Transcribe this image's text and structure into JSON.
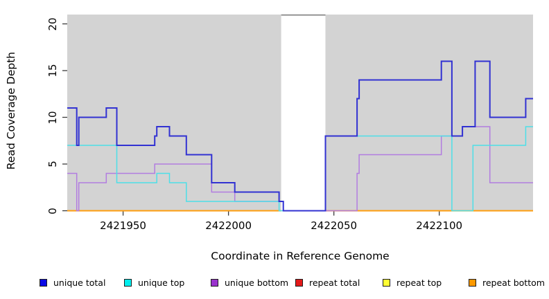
{
  "axes": {
    "y": {
      "label": "Read Coverage Depth"
    },
    "x": {
      "label": "Coordinate in Reference Genome"
    }
  },
  "chart_data": {
    "type": "line",
    "step": true,
    "title": "",
    "xlabel": "Coordinate in Reference Genome",
    "ylabel": "Read Coverage Depth",
    "xlim": [
      2421923.5,
      2422144.5
    ],
    "ylim": [
      0,
      21
    ],
    "x_ticks": [
      2421950,
      2422000,
      2422050,
      2422100
    ],
    "y_ticks": [
      0,
      5,
      10,
      15,
      20
    ],
    "grid": false,
    "legend_position": "bottom",
    "band_color": "#d3d3d3",
    "background_bands": [
      {
        "x0": 2421923.5,
        "x1": 2422025
      },
      {
        "x0": 2422046,
        "x1": 2422144.5
      }
    ],
    "white_gap": [
      2422025,
      2422046
    ],
    "series": [
      {
        "name": "repeat total",
        "color": "#d81e1e",
        "width": 1.4,
        "segments": [
          [
            [
              2421923.5,
              0
            ],
            [
              2422025,
              0
            ]
          ],
          [
            [
              2422046,
              0
            ],
            [
              2422144.5,
              0
            ]
          ]
        ]
      },
      {
        "name": "repeat top",
        "color": "#f0e63c",
        "width": 1.4,
        "segments": [
          [
            [
              2421923.5,
              0
            ],
            [
              2422025,
              0
            ]
          ],
          [
            [
              2422046,
              0
            ],
            [
              2422144.5,
              0
            ]
          ]
        ]
      },
      {
        "name": "repeat bottom",
        "color": "#ff9e0f",
        "width": 1.9,
        "segments": [
          [
            [
              2421923.5,
              0
            ],
            [
              2422025,
              0
            ]
          ],
          [
            [
              2422046,
              0
            ],
            [
              2422144.5,
              0
            ]
          ]
        ]
      },
      {
        "name": "unique bottom",
        "color": "#b27ce0",
        "width": 1.5,
        "segments": [
          [
            [
              2421923.5,
              4
            ],
            [
              2421928,
              0
            ],
            [
              2421929,
              3
            ],
            [
              2421942,
              4
            ],
            [
              2421965,
              5
            ],
            [
              2421992,
              2
            ],
            [
              2422003,
              1
            ],
            [
              2422026,
              0
            ],
            [
              2422061,
              4
            ],
            [
              2422062,
              6
            ],
            [
              2422101,
              8
            ],
            [
              2422111,
              9
            ],
            [
              2422124,
              3
            ],
            [
              2422144.5,
              3
            ]
          ]
        ]
      },
      {
        "name": "unique top",
        "color": "#4ddfe8",
        "width": 1.5,
        "segments": [
          [
            [
              2421923.5,
              7
            ],
            [
              2421947,
              3
            ],
            [
              2421966,
              4
            ],
            [
              2421972,
              3
            ],
            [
              2421980,
              1
            ],
            [
              2422024,
              0
            ],
            [
              2422046,
              8
            ],
            [
              2422106,
              0
            ],
            [
              2422116,
              7
            ],
            [
              2422141,
              9
            ],
            [
              2422144.5,
              9
            ]
          ]
        ]
      },
      {
        "name": "unique total",
        "color": "#3131d2",
        "width": 2,
        "segments": [
          [
            [
              2421923.5,
              11
            ],
            [
              2421928,
              7
            ],
            [
              2421929,
              10
            ],
            [
              2421942,
              11
            ],
            [
              2421947,
              7
            ],
            [
              2421965,
              8
            ],
            [
              2421966,
              9
            ],
            [
              2421972,
              8
            ],
            [
              2421980,
              6
            ],
            [
              2421992,
              3
            ],
            [
              2422003,
              2
            ],
            [
              2422024,
              1
            ],
            [
              2422026,
              0
            ],
            [
              2422046,
              8
            ],
            [
              2422061,
              12
            ],
            [
              2422062,
              14
            ],
            [
              2422101,
              16
            ],
            [
              2422106,
              8
            ],
            [
              2422111,
              9
            ],
            [
              2422117,
              16
            ],
            [
              2422124,
              10
            ],
            [
              2422141,
              12
            ],
            [
              2422144.5,
              12
            ]
          ]
        ]
      }
    ]
  },
  "legend": {
    "items": [
      {
        "label": "unique total",
        "color": "#0a0ae6"
      },
      {
        "label": "unique top",
        "color": "#00eeee"
      },
      {
        "label": "unique bottom",
        "color": "#9932cc"
      },
      {
        "label": "repeat total",
        "color": "#e31a1a"
      },
      {
        "label": "repeat top",
        "color": "#ffff33"
      },
      {
        "label": "repeat bottom",
        "color": "#ff9900"
      }
    ]
  }
}
